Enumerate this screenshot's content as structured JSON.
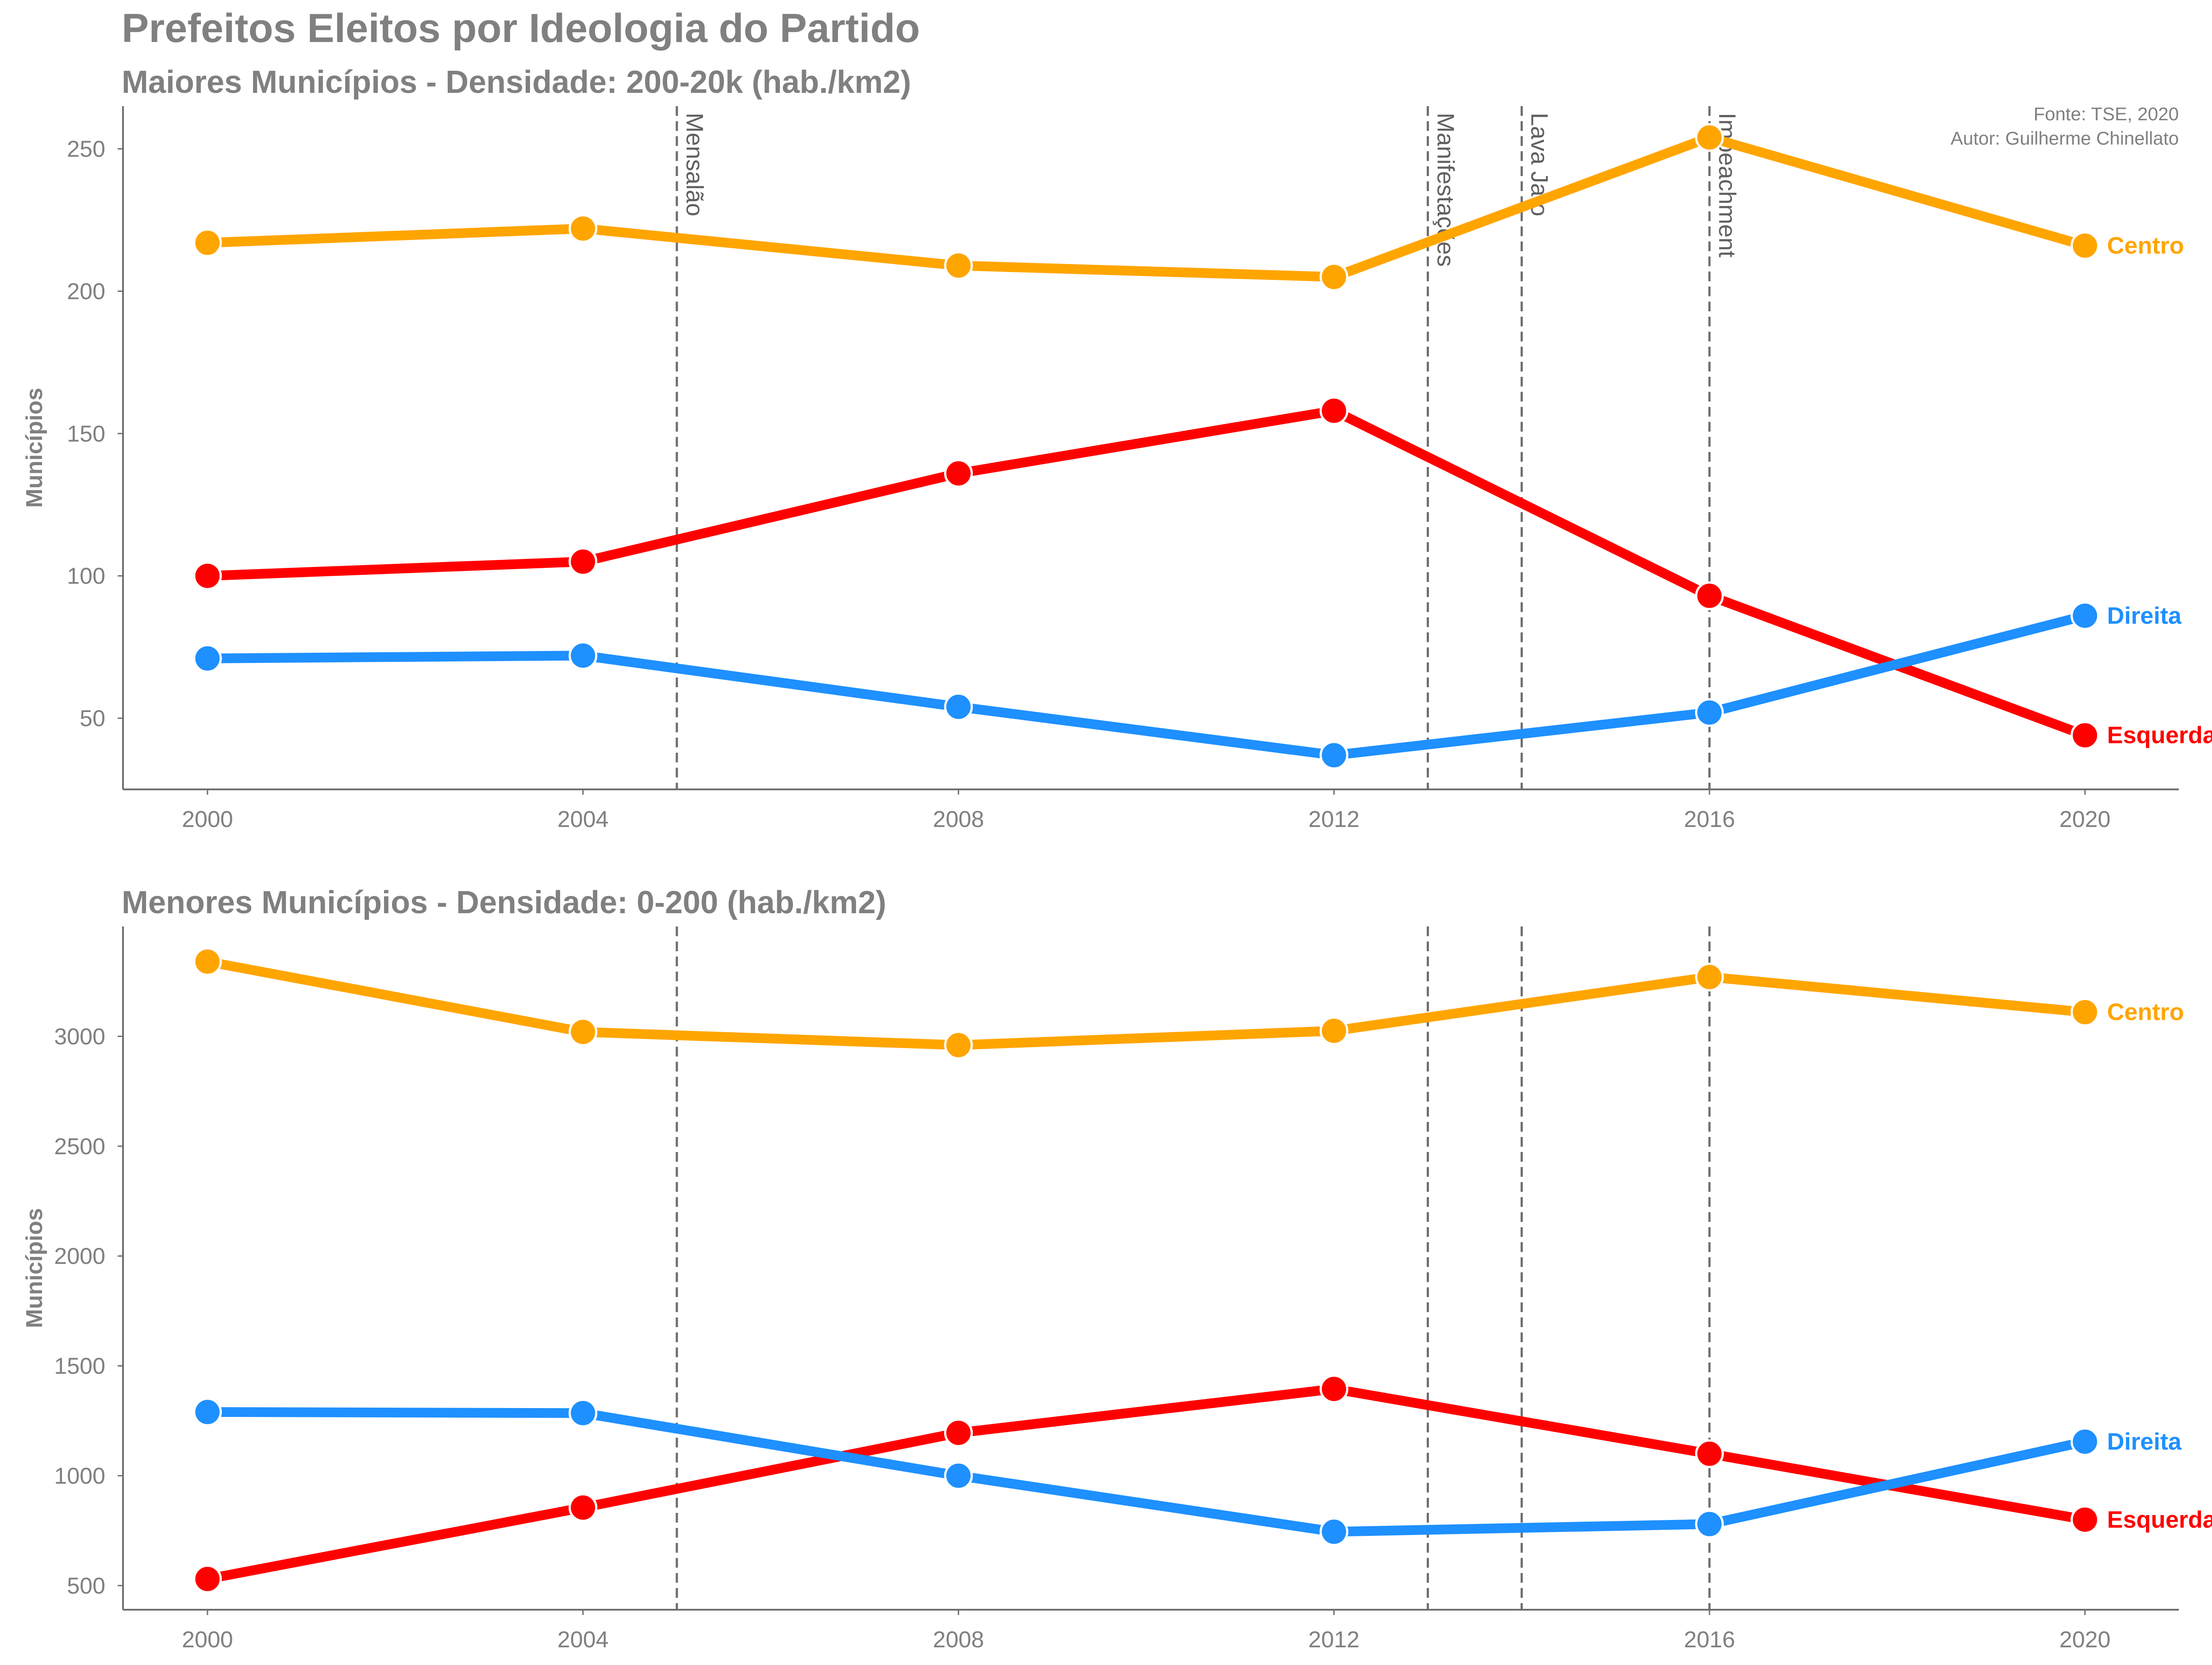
{
  "title": "Prefeitos Eleitos por Ideologia do Partido",
  "source_note": "Fonte: TSE, 2020",
  "author_note": "Autor: Guilherme Chinellato",
  "colors": {
    "Centro": "#FFA500",
    "Esquerda": "#FF0000",
    "Direita": "#1E90FF",
    "text": "#808080",
    "event_line": "#6e6e6e"
  },
  "chart_data": [
    {
      "type": "line",
      "title": "Maiores Municípios - Densidade: 200-20k (hab./km2)",
      "xlabel": "",
      "ylabel": "Municípios",
      "x": [
        2000,
        2004,
        2008,
        2012,
        2016,
        2020
      ],
      "xticks": [
        2000,
        2004,
        2008,
        2012,
        2016,
        2020
      ],
      "xlim": [
        1999.1,
        2021
      ],
      "ylim": [
        25,
        265
      ],
      "yticks": [
        50,
        100,
        150,
        200,
        250
      ],
      "grid": false,
      "series": [
        {
          "name": "Centro",
          "values": [
            217,
            222,
            209,
            205,
            254,
            216
          ]
        },
        {
          "name": "Esquerda",
          "values": [
            100,
            105,
            136,
            158,
            93,
            44
          ]
        },
        {
          "name": "Direita",
          "values": [
            71,
            72,
            54,
            37,
            52,
            86
          ]
        }
      ],
      "events": [
        {
          "label": "Mensalão",
          "x": 2005
        },
        {
          "label": "Manifestações",
          "x": 2013
        },
        {
          "label": "Lava Jato",
          "x": 2014
        },
        {
          "label": "Impeachment",
          "x": 2016
        }
      ]
    },
    {
      "type": "line",
      "title": "Menores Municípios - Densidade: 0-200 (hab./km2)",
      "xlabel": "",
      "ylabel": "Municípios",
      "x": [
        2000,
        2004,
        2008,
        2012,
        2016,
        2020
      ],
      "xticks": [
        2000,
        2004,
        2008,
        2012,
        2016,
        2020
      ],
      "xlim": [
        1999.1,
        2021
      ],
      "ylim": [
        390,
        3500
      ],
      "yticks": [
        500,
        1000,
        1500,
        2000,
        2500,
        3000
      ],
      "grid": false,
      "series": [
        {
          "name": "Centro",
          "values": [
            3340,
            3020,
            2960,
            3025,
            3270,
            3110
          ]
        },
        {
          "name": "Esquerda",
          "values": [
            530,
            855,
            1195,
            1395,
            1100,
            800
          ]
        },
        {
          "name": "Direita",
          "values": [
            1290,
            1285,
            1000,
            745,
            780,
            1155
          ]
        }
      ],
      "events": [
        {
          "x": 2005
        },
        {
          "x": 2013
        },
        {
          "x": 2014
        },
        {
          "x": 2016
        }
      ]
    }
  ]
}
